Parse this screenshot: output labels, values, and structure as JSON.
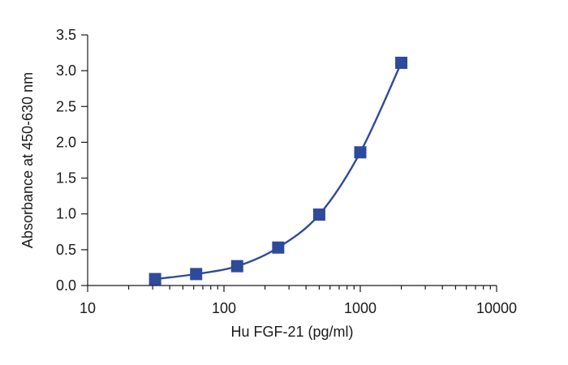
{
  "chart_data": {
    "type": "scatter",
    "title": "",
    "xlabel": "Hu FGF-21 (pg/ml)",
    "ylabel": "Absorbance at 450-630 nm",
    "x_scale": "log",
    "xlim": [
      10,
      10000
    ],
    "ylim": [
      0,
      3.5
    ],
    "x_ticks": [
      10,
      100,
      1000,
      10000
    ],
    "x_tick_labels": [
      "10",
      "100",
      "1000",
      "10000"
    ],
    "y_ticks": [
      0,
      0.5,
      1,
      1.5,
      2,
      2.5,
      3,
      3.5
    ],
    "y_tick_labels": [
      "0.0",
      "0.5",
      "1.0",
      "1.5",
      "2.0",
      "2.5",
      "3.0",
      "3.5"
    ],
    "grid": false,
    "legend": "none",
    "series": [
      {
        "x": [
          31.25,
          62.5,
          125,
          250,
          500,
          1000,
          2000
        ],
        "y": [
          0.09,
          0.16,
          0.27,
          0.53,
          0.99,
          1.86,
          3.11
        ],
        "marker": "square",
        "color": "#2e4a9a",
        "fit_line": true
      }
    ]
  }
}
